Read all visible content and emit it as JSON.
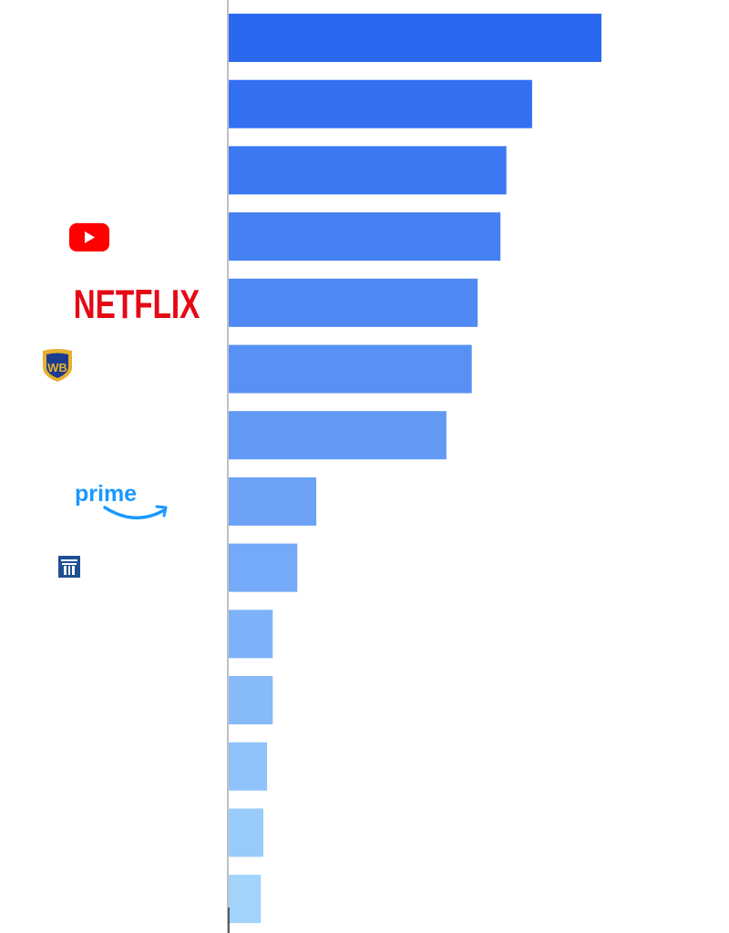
{
  "chart_data": {
    "type": "bar",
    "orientation": "horizontal",
    "categories": [
      "",
      "",
      "",
      "YouTube",
      "NETFLIX",
      "WB",
      "",
      "prime",
      "",
      "",
      "",
      "",
      "",
      ""
    ],
    "values": [
      100,
      81.4,
      74.5,
      72.9,
      66.8,
      65.2,
      58.4,
      23.5,
      18.4,
      11.8,
      11.8,
      10.3,
      9.3,
      8.6
    ],
    "xlim": [
      0,
      100
    ],
    "grid": false,
    "legend": "none",
    "colors": {
      "bar_start": "#2a68f0",
      "bar_end": "#a2d3fb",
      "axis": "#c0c0c0",
      "youtube_red": "#ff0000",
      "netflix_red": "#e50914",
      "wb_blue": "#1c3c8e",
      "wb_gold": "#e7b02f",
      "prime_blue": "#1a98ff",
      "tower_blue": "#1f4f93"
    },
    "logos": [
      "youtube-logo",
      "netflix-logo",
      "warner-bros-logo",
      "prime-video-logo",
      "tower-logo"
    ]
  }
}
